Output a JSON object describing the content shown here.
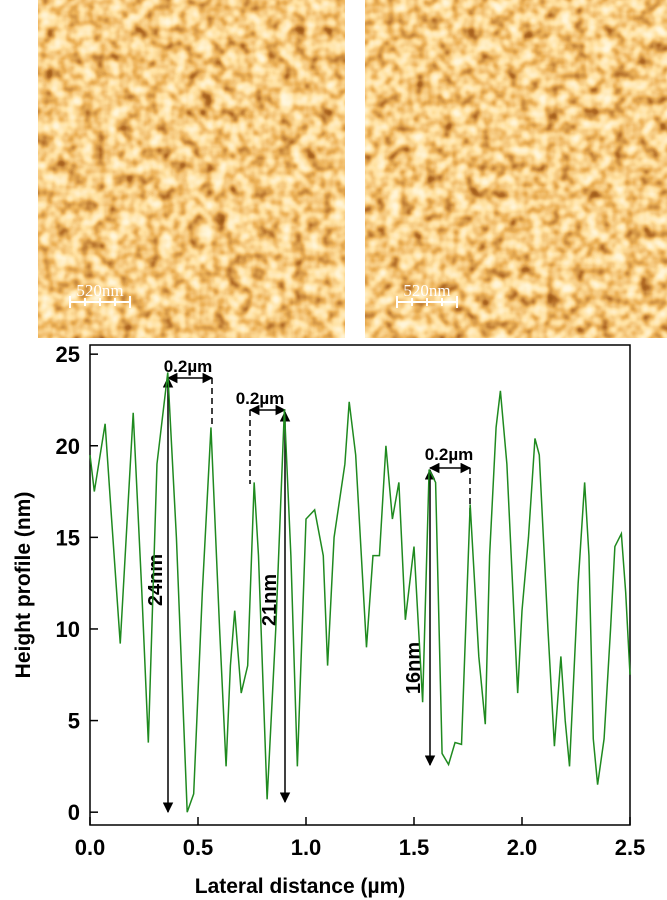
{
  "images": [
    {
      "scale_label": "520nm"
    },
    {
      "scale_label": "520nm"
    }
  ],
  "chart_data": {
    "type": "line",
    "xlabel": "Lateral distance (µm)",
    "ylabel": "Height profile (nm)",
    "x": [
      0,
      0.02,
      0.07,
      0.1,
      0.14,
      0.2,
      0.24,
      0.27,
      0.31,
      0.36,
      0.4,
      0.45,
      0.48,
      0.52,
      0.56,
      0.6,
      0.63,
      0.65,
      0.67,
      0.7,
      0.73,
      0.76,
      0.78,
      0.82,
      0.86,
      0.9,
      0.93,
      0.96,
      1.0,
      1.04,
      1.08,
      1.1,
      1.13,
      1.18,
      1.2,
      1.23,
      1.28,
      1.31,
      1.34,
      1.37,
      1.4,
      1.43,
      1.46,
      1.5,
      1.54,
      1.57,
      1.6,
      1.63,
      1.66,
      1.69,
      1.72,
      1.76,
      1.8,
      1.83,
      1.85,
      1.88,
      1.9,
      1.93,
      1.98,
      2.0,
      2.03,
      2.06,
      2.08,
      2.12,
      2.15,
      2.18,
      2.2,
      2.22,
      2.26,
      2.29,
      2.31,
      2.33,
      2.35,
      2.38,
      2.41,
      2.43,
      2.46,
      2.48,
      2.5
    ],
    "series": [
      {
        "color": "#1f8a1f",
        "values": [
          19.5,
          17.5,
          21.2,
          16,
          9.2,
          21.8,
          12,
          3.8,
          19,
          24,
          15,
          0,
          1,
          12,
          21,
          10,
          2.5,
          8,
          11,
          6.5,
          8,
          18,
          14,
          0.7,
          10,
          22,
          14,
          2.5,
          16,
          16.5,
          14,
          8,
          15,
          19,
          22.4,
          19.5,
          9,
          14,
          14,
          20,
          16,
          18,
          10.5,
          14.5,
          6,
          18.7,
          18,
          3.2,
          2.6,
          3.8,
          3.7,
          16.8,
          8.5,
          4.8,
          14,
          21,
          23,
          19,
          6.5,
          11,
          15,
          20.4,
          19.5,
          10,
          3.6,
          8.5,
          5,
          2.5,
          12.5,
          18,
          14,
          4,
          1.5,
          4,
          10,
          14.5,
          15.2,
          12,
          7.5
        ]
      }
    ],
    "xlim": [
      0,
      2.5
    ],
    "ylim": [
      -0.7,
      25.5
    ],
    "xticks": [
      {
        "value": 0,
        "label": "0.0"
      },
      0.5,
      {
        "value": 1,
        "label": "1.0"
      },
      1.5,
      {
        "value": 2,
        "label": "2.0"
      },
      2.5
    ],
    "yticks": [
      0,
      5,
      10,
      15,
      20,
      25
    ],
    "annotations": [
      "0.2µm",
      "0.2µm",
      "0.2µm",
      "24nm",
      "21nm",
      "16nm"
    ]
  }
}
